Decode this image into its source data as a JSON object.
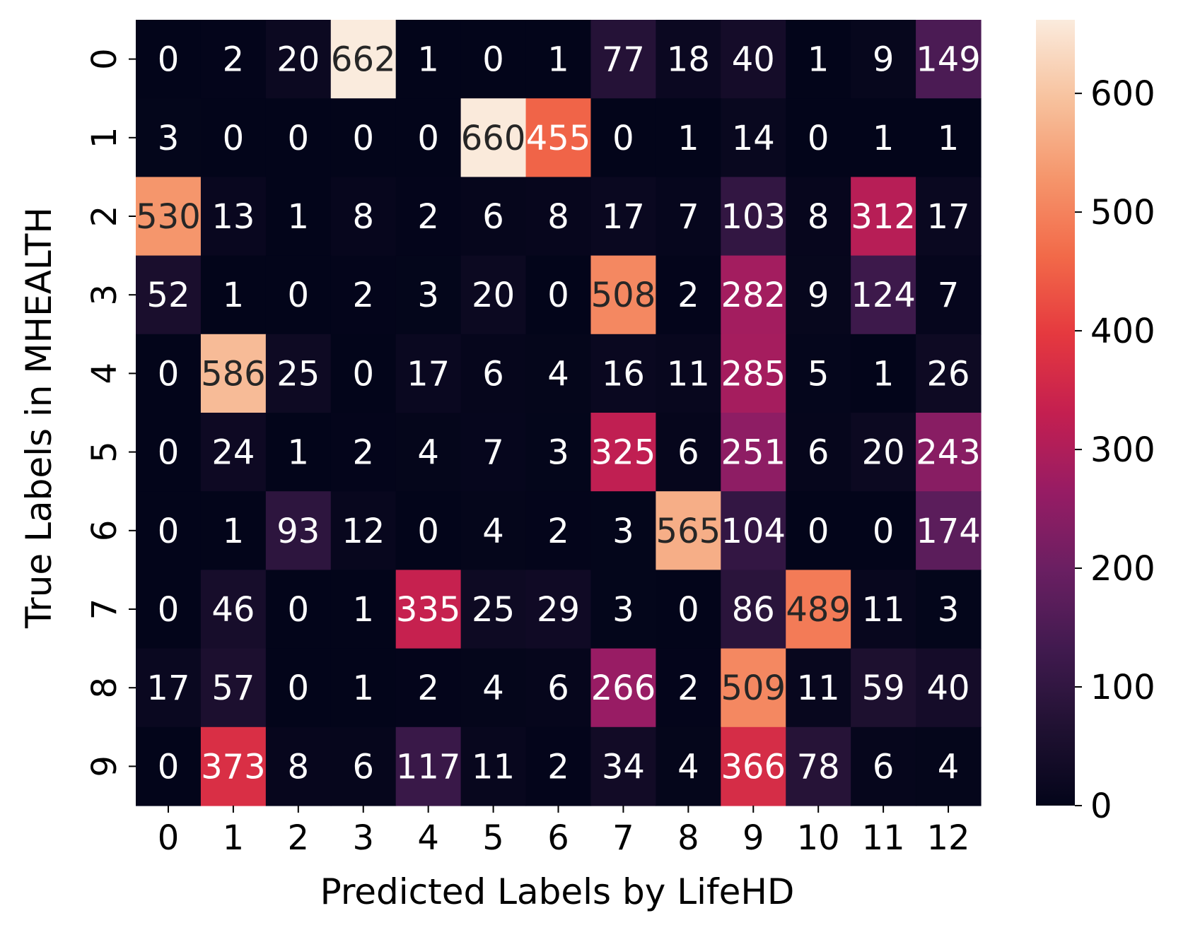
{
  "chart_data": {
    "type": "heatmap",
    "xlabel": "Predicted Labels by LifeHD",
    "ylabel": "True Labels in MHEALTH",
    "x_categories": [
      "0",
      "1",
      "2",
      "3",
      "4",
      "5",
      "6",
      "7",
      "8",
      "9",
      "10",
      "11",
      "12"
    ],
    "y_categories": [
      "0",
      "1",
      "2",
      "3",
      "4",
      "5",
      "6",
      "7",
      "8",
      "9"
    ],
    "values": [
      [
        0,
        2,
        20,
        662,
        1,
        0,
        1,
        77,
        18,
        40,
        1,
        9,
        149
      ],
      [
        3,
        0,
        0,
        0,
        0,
        660,
        455,
        0,
        1,
        14,
        0,
        1,
        1
      ],
      [
        530,
        13,
        1,
        8,
        2,
        6,
        8,
        17,
        7,
        103,
        8,
        312,
        17
      ],
      [
        52,
        1,
        0,
        2,
        3,
        20,
        0,
        508,
        2,
        282,
        9,
        124,
        7
      ],
      [
        0,
        586,
        25,
        0,
        17,
        6,
        4,
        16,
        11,
        285,
        5,
        1,
        26
      ],
      [
        0,
        24,
        1,
        2,
        4,
        7,
        3,
        325,
        6,
        251,
        6,
        20,
        243
      ],
      [
        0,
        1,
        93,
        12,
        0,
        4,
        2,
        3,
        565,
        104,
        0,
        0,
        174
      ],
      [
        0,
        46,
        0,
        1,
        335,
        25,
        29,
        3,
        0,
        86,
        489,
        11,
        3
      ],
      [
        17,
        57,
        0,
        1,
        2,
        4,
        6,
        266,
        2,
        509,
        11,
        59,
        40
      ],
      [
        0,
        373,
        8,
        6,
        117,
        11,
        2,
        34,
        4,
        366,
        78,
        6,
        4
      ]
    ],
    "colorbar": {
      "range": [
        0,
        662
      ],
      "ticks": [
        0,
        100,
        200,
        300,
        400,
        500,
        600
      ],
      "colormap": "rocket"
    },
    "grid": false
  }
}
